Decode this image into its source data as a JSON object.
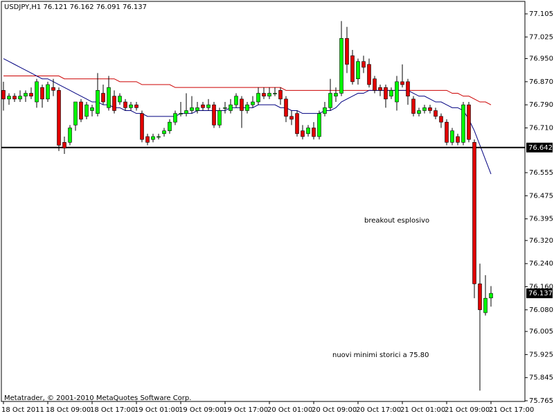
{
  "chart_data": {
    "type": "candlestick",
    "title": "USDJPY,H1  76.121 76.162 76.091 76.137",
    "footer": "Metatrader, © 2001-2010 MetaQuotes Software Corp.",
    "annotations": [
      "breakout esplosivo",
      "nuovi minimi storici a 75.80"
    ],
    "bull_color": "#00ff00",
    "bear_color": "#e00000",
    "ylim": [
      75.765,
      77.105
    ],
    "yticks": [
      77.105,
      77.025,
      {
        "value": 76.95,
        "label": "76.950"
      },
      {
        "value": 76.87,
        "label": "76.870"
      },
      {
        "value": 76.79,
        "label": "76.790"
      },
      {
        "value": 76.71,
        "label": "76.710"
      },
      76.555,
      76.475,
      76.395,
      {
        "value": 76.32,
        "label": "76.320"
      },
      {
        "value": 76.24,
        "label": "76.240"
      },
      {
        "value": 76.16,
        "label": "76.160"
      },
      {
        "value": 76.08,
        "label": "76.080"
      },
      76.005,
      75.925,
      75.845,
      75.765
    ],
    "hline": {
      "value": 76.642,
      "color": "#000000"
    },
    "last_price": 76.137,
    "categories": [
      "18 Oct 2011",
      null,
      null,
      null,
      null,
      null,
      null,
      null,
      "18 Oct 09:00",
      null,
      null,
      null,
      null,
      null,
      null,
      null,
      "18 Oct 17:00",
      null,
      null,
      null,
      null,
      null,
      null,
      null,
      "19 Oct 01:00",
      null,
      null,
      null,
      null,
      null,
      null,
      null,
      "19 Oct 09:00",
      null,
      null,
      null,
      null,
      null,
      null,
      null,
      "19 Oct 17:00",
      null,
      null,
      null,
      null,
      null,
      null,
      null,
      "20 Oct 01:00",
      null,
      null,
      null,
      null,
      null,
      null,
      null,
      "20 Oct 09:00",
      null,
      null,
      null,
      null,
      null,
      null,
      null,
      "20 Oct 17:00",
      null,
      null,
      null,
      null,
      null,
      null,
      null,
      "21 Oct 01:00",
      null,
      null,
      null,
      null,
      null,
      null,
      null,
      "21 Oct 09:00",
      null,
      null,
      null,
      null,
      null,
      null,
      null,
      "21 Oct 17:00"
    ],
    "open": [
      76.84,
      76.81,
      76.82,
      76.81,
      76.82,
      76.83,
      76.8,
      76.85,
      76.81,
      76.85,
      76.84,
      76.66,
      76.66,
      76.72,
      76.8,
      76.75,
      76.77,
      76.76,
      76.83,
      76.78,
      76.82,
      76.8,
      76.8,
      76.78,
      76.79,
      76.76,
      76.68,
      76.67,
      76.68,
      76.69,
      76.7,
      76.73,
      76.76,
      76.76,
      76.77,
      76.77,
      76.79,
      76.78,
      76.79,
      76.72,
      76.78,
      76.77,
      76.79,
      76.81,
      76.77,
      76.79,
      76.8,
      76.83,
      76.82,
      76.83,
      76.84,
      76.81,
      76.75,
      76.76,
      76.7,
      76.69,
      76.71,
      76.68,
      76.76,
      76.78,
      76.82,
      76.83,
      77.02,
      76.96,
      76.88,
      76.94,
      76.93,
      76.88,
      76.85,
      76.85,
      76.82,
      76.8,
      76.87,
      76.87,
      76.81,
      76.76,
      76.77,
      76.78,
      76.77,
      76.75,
      76.73,
      76.66,
      76.68,
      76.66,
      76.79,
      76.66,
      76.17,
      76.07,
      76.121
    ],
    "high": [
      76.87,
      76.83,
      76.83,
      76.84,
      76.84,
      76.85,
      76.88,
      76.86,
      76.87,
      76.88,
      76.85,
      76.68,
      76.72,
      76.8,
      76.81,
      76.8,
      76.79,
      76.9,
      76.86,
      76.89,
      76.84,
      76.83,
      76.81,
      76.8,
      76.8,
      76.77,
      76.69,
      76.69,
      76.69,
      76.71,
      76.74,
      76.77,
      76.8,
      76.83,
      76.82,
      76.8,
      76.8,
      76.81,
      76.8,
      76.78,
      76.8,
      76.81,
      76.83,
      76.82,
      76.8,
      76.82,
      76.85,
      76.85,
      76.85,
      76.85,
      76.85,
      76.82,
      76.77,
      76.77,
      76.72,
      76.72,
      76.73,
      76.77,
      76.8,
      76.88,
      76.85,
      77.08,
      77.06,
      76.98,
      76.95,
      76.96,
      76.95,
      76.89,
      76.86,
      76.86,
      76.85,
      76.89,
      76.93,
      76.88,
      76.82,
      76.78,
      76.79,
      76.79,
      76.78,
      76.76,
      76.74,
      76.71,
      76.69,
      76.8,
      76.8,
      76.67,
      76.24,
      76.2,
      76.162
    ],
    "low": [
      76.77,
      76.79,
      76.8,
      76.8,
      76.8,
      76.81,
      76.78,
      76.78,
      76.8,
      76.82,
      76.63,
      76.62,
      76.65,
      76.7,
      76.73,
      76.74,
      76.75,
      76.75,
      76.79,
      76.77,
      76.76,
      76.79,
      76.77,
      76.77,
      76.77,
      76.66,
      76.65,
      76.66,
      76.67,
      76.68,
      76.69,
      76.72,
      76.75,
      76.75,
      76.76,
      76.76,
      76.77,
      76.77,
      76.71,
      76.71,
      76.76,
      76.76,
      76.78,
      76.71,
      76.76,
      76.78,
      76.79,
      76.81,
      76.81,
      76.82,
      76.79,
      76.73,
      76.72,
      76.68,
      76.67,
      76.68,
      76.67,
      76.67,
      76.75,
      76.77,
      76.8,
      76.82,
      76.9,
      76.86,
      76.86,
      76.9,
      76.85,
      76.83,
      76.82,
      76.78,
      76.81,
      76.77,
      76.85,
      76.79,
      76.75,
      76.75,
      76.76,
      76.76,
      76.74,
      76.71,
      76.65,
      76.65,
      76.65,
      76.65,
      76.66,
      76.12,
      75.8,
      76.06,
      76.091
    ],
    "close": [
      76.81,
      76.82,
      76.81,
      76.82,
      76.83,
      76.82,
      76.87,
      76.81,
      76.86,
      76.84,
      76.65,
      76.64,
      76.71,
      76.8,
      76.74,
      76.79,
      76.78,
      76.84,
      76.8,
      76.85,
      76.77,
      76.82,
      76.78,
      76.79,
      76.78,
      76.67,
      76.66,
      76.68,
      76.68,
      76.7,
      76.73,
      76.76,
      76.76,
      76.77,
      76.78,
      76.78,
      76.78,
      76.79,
      76.72,
      76.77,
      76.78,
      76.79,
      76.82,
      76.77,
      76.79,
      76.8,
      76.83,
      76.82,
      76.83,
      76.83,
      76.81,
      76.75,
      76.74,
      76.69,
      76.68,
      76.71,
      76.68,
      76.76,
      76.78,
      76.83,
      76.83,
      77.02,
      76.93,
      76.87,
      76.94,
      76.92,
      76.86,
      76.84,
      76.84,
      76.81,
      76.84,
      76.87,
      76.86,
      76.82,
      76.76,
      76.77,
      76.78,
      76.77,
      76.75,
      76.73,
      76.66,
      76.7,
      76.66,
      76.79,
      76.67,
      76.17,
      76.08,
      76.12,
      76.137
    ],
    "lines": [
      {
        "color": "#cc0000",
        "values": [
          76.89,
          76.89,
          76.89,
          76.89,
          76.89,
          76.89,
          76.89,
          76.89,
          76.89,
          76.89,
          76.89,
          76.88,
          76.88,
          76.88,
          76.88,
          76.88,
          76.88,
          76.88,
          76.88,
          76.88,
          76.88,
          76.87,
          76.87,
          76.87,
          76.87,
          76.86,
          76.86,
          76.86,
          76.86,
          76.86,
          76.86,
          76.85,
          76.85,
          76.85,
          76.85,
          76.85,
          76.85,
          76.85,
          76.85,
          76.85,
          76.85,
          76.85,
          76.85,
          76.85,
          76.85,
          76.85,
          76.85,
          76.85,
          76.85,
          76.85,
          76.85,
          76.84,
          76.84,
          76.84,
          76.84,
          76.84,
          76.84,
          76.84,
          76.84,
          76.84,
          76.84,
          76.84,
          76.84,
          76.84,
          76.84,
          76.84,
          76.84,
          76.84,
          76.84,
          76.84,
          76.84,
          76.84,
          76.84,
          76.84,
          76.84,
          76.84,
          76.84,
          76.84,
          76.84,
          76.84,
          76.84,
          76.83,
          76.83,
          76.82,
          76.82,
          76.81,
          76.8,
          76.8,
          76.79
        ]
      },
      {
        "color": "#000080",
        "values": [
          76.95,
          76.94,
          76.93,
          76.92,
          76.91,
          76.9,
          76.89,
          76.88,
          76.88,
          76.87,
          76.86,
          76.85,
          76.84,
          76.83,
          76.82,
          76.81,
          76.8,
          76.8,
          76.79,
          76.79,
          76.78,
          76.78,
          76.77,
          76.77,
          76.76,
          76.76,
          76.75,
          76.75,
          76.75,
          76.75,
          76.75,
          76.75,
          76.76,
          76.76,
          76.76,
          76.77,
          76.77,
          76.77,
          76.77,
          76.77,
          76.77,
          76.78,
          76.78,
          76.78,
          76.78,
          76.78,
          76.79,
          76.79,
          76.79,
          76.79,
          76.78,
          76.78,
          76.77,
          76.77,
          76.76,
          76.76,
          76.76,
          76.76,
          76.77,
          76.77,
          76.78,
          76.8,
          76.81,
          76.82,
          76.83,
          76.83,
          76.84,
          76.84,
          76.84,
          76.84,
          76.84,
          76.84,
          76.84,
          76.84,
          76.83,
          76.82,
          76.82,
          76.81,
          76.8,
          76.8,
          76.79,
          76.78,
          76.78,
          76.77,
          76.74,
          76.7,
          76.65,
          76.6,
          76.55
        ]
      }
    ]
  }
}
